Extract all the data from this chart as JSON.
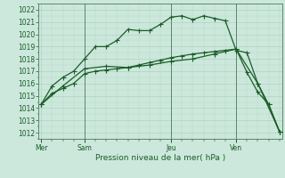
{
  "background_color": "#cce8dc",
  "grid_color": "#aaccbb",
  "line_color": "#1a5c28",
  "title": "Pression niveau de la mer( hPa )",
  "ylim": [
    1011.5,
    1022.5
  ],
  "yticks": [
    1012,
    1013,
    1014,
    1015,
    1016,
    1017,
    1018,
    1019,
    1020,
    1021,
    1022
  ],
  "day_labels": [
    "Mer",
    "Sam",
    "Jeu",
    "Ven"
  ],
  "day_positions": [
    0,
    8,
    24,
    36
  ],
  "vline_positions": [
    8,
    24,
    36
  ],
  "x_total": 44,
  "xlim": [
    -0.5,
    44.5
  ],
  "series1_x": [
    0,
    2,
    4,
    6,
    8,
    10,
    12,
    14,
    16,
    18,
    20,
    22,
    24,
    26,
    28,
    30,
    32,
    34,
    36,
    38,
    40,
    42,
    44
  ],
  "series1_y": [
    1014.3,
    1015.8,
    1016.5,
    1017.0,
    1018.0,
    1019.0,
    1019.0,
    1019.5,
    1020.4,
    1020.3,
    1020.3,
    1020.8,
    1021.4,
    1021.5,
    1021.2,
    1021.5,
    1021.3,
    1021.1,
    1018.7,
    1018.5,
    1016.0,
    1014.3,
    1012.1
  ],
  "series2_x": [
    0,
    4,
    8,
    12,
    16,
    20,
    24,
    28,
    32,
    36,
    40,
    44
  ],
  "series2_y": [
    1014.3,
    1015.8,
    1017.2,
    1017.4,
    1017.3,
    1017.5,
    1017.8,
    1018.0,
    1018.4,
    1018.8,
    1016.0,
    1012.1
  ],
  "series3_x": [
    0,
    2,
    4,
    6,
    8,
    10,
    12,
    14,
    16,
    18,
    20,
    22,
    24,
    26,
    28,
    30,
    32,
    34,
    36,
    38,
    40,
    42,
    44
  ],
  "series3_y": [
    1014.3,
    1015.2,
    1015.6,
    1016.0,
    1016.8,
    1017.0,
    1017.1,
    1017.2,
    1017.3,
    1017.5,
    1017.7,
    1017.9,
    1018.1,
    1018.25,
    1018.4,
    1018.5,
    1018.6,
    1018.7,
    1018.8,
    1016.9,
    1015.3,
    1014.3,
    1012.1
  ],
  "marker_size": 2.0,
  "linewidth": 0.9,
  "tick_fontsize": 5.5,
  "label_fontsize": 6.5
}
